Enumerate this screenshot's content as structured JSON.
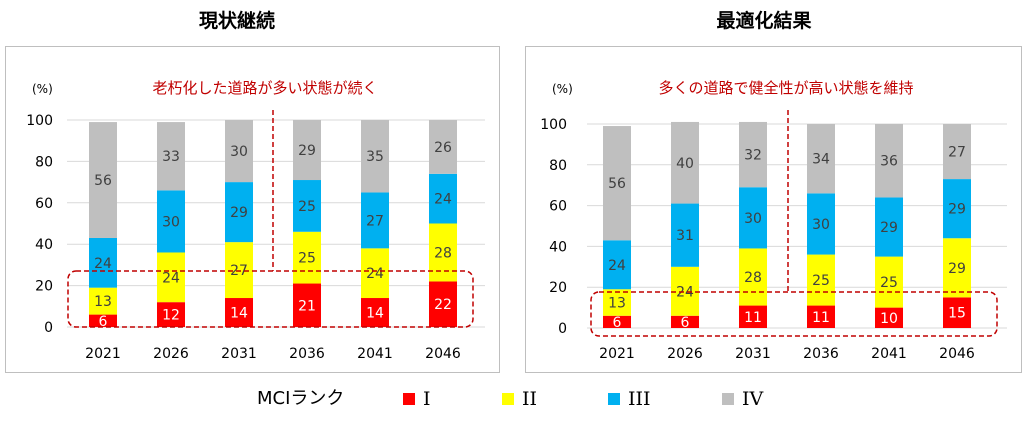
{
  "legend": {
    "title": "MCIランク",
    "items": [
      {
        "label": "I",
        "color": "#ff0000"
      },
      {
        "label": "II",
        "color": "#ffff00"
      },
      {
        "label": "III",
        "color": "#00b0f0"
      },
      {
        "label": "IV",
        "color": "#bfbfbf"
      }
    ]
  },
  "chart_data": [
    {
      "type": "bar",
      "stacked": true,
      "title": "現状継続",
      "unit_label": "(%)",
      "annotation": "老朽化した道路が多い状態が続く",
      "ylim": [
        0,
        100
      ],
      "yticks": [
        0,
        20,
        40,
        60,
        80,
        100
      ],
      "categories": [
        "2021",
        "2026",
        "2031",
        "2036",
        "2041",
        "2046"
      ],
      "series": [
        {
          "name": "I",
          "color": "#ff0000",
          "values": [
            6,
            12,
            14,
            21,
            14,
            22
          ]
        },
        {
          "name": "II",
          "color": "#ffff00",
          "values": [
            13,
            24,
            27,
            25,
            24,
            28
          ]
        },
        {
          "name": "III",
          "color": "#00b0f0",
          "values": [
            24,
            30,
            29,
            25,
            27,
            24
          ]
        },
        {
          "name": "IV",
          "color": "#bfbfbf",
          "values": [
            56,
            33,
            30,
            29,
            35,
            26
          ]
        }
      ]
    },
    {
      "type": "bar",
      "stacked": true,
      "title": "最適化結果",
      "unit_label": "(%)",
      "annotation": "多くの道路で健全性が高い状態を維持",
      "ylim": [
        0,
        100
      ],
      "yticks": [
        0,
        20,
        40,
        60,
        80,
        100
      ],
      "categories": [
        "2021",
        "2026",
        "2031",
        "2036",
        "2041",
        "2046"
      ],
      "series": [
        {
          "name": "I",
          "color": "#ff0000",
          "values": [
            6,
            6,
            11,
            11,
            10,
            15
          ]
        },
        {
          "name": "II",
          "color": "#ffff00",
          "values": [
            13,
            24,
            28,
            25,
            25,
            29
          ]
        },
        {
          "name": "III",
          "color": "#00b0f0",
          "values": [
            24,
            31,
            30,
            30,
            29,
            29
          ]
        },
        {
          "name": "IV",
          "color": "#bfbfbf",
          "values": [
            56,
            40,
            32,
            34,
            36,
            27
          ]
        }
      ]
    }
  ]
}
